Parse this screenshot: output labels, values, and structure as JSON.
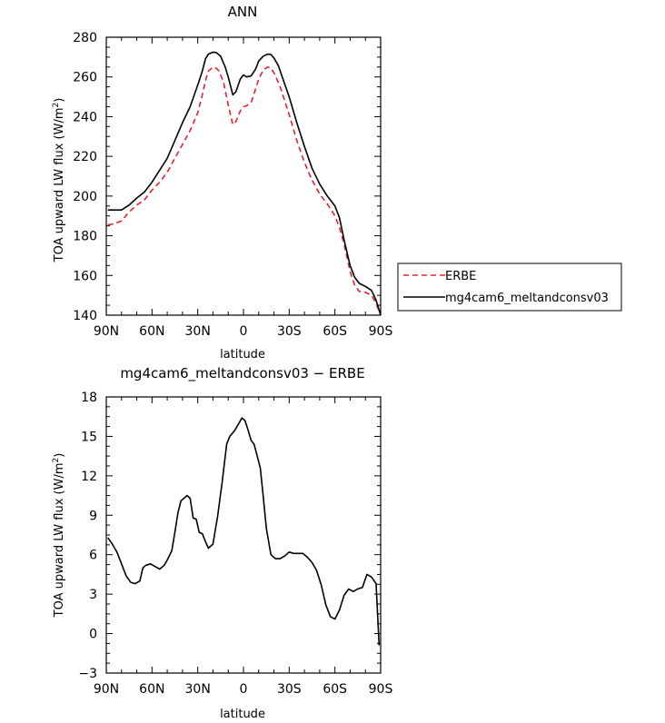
{
  "chart_data": [
    {
      "type": "line",
      "title": "ANN",
      "xlabel": "latitude",
      "ylabel_main": "TOA upward LW flux (W/m",
      "ylabel_sup": "2",
      "ylabel_tail": ")",
      "xlim": [
        -90,
        90
      ],
      "ylim": [
        140,
        280
      ],
      "x_ticks": [
        -90,
        -60,
        -30,
        0,
        30,
        60,
        90
      ],
      "x_tick_labels": [
        "90N",
        "60N",
        "30N",
        "0",
        "30S",
        "60S",
        "90S"
      ],
      "y_ticks": [
        140,
        160,
        180,
        200,
        220,
        240,
        260,
        280
      ],
      "y_tick_labels": [
        "140",
        "160",
        "180",
        "200",
        "220",
        "240",
        "260",
        "280"
      ],
      "legend_position": "right",
      "series": [
        {
          "name": "ERBE",
          "color": "#e8202a",
          "dash": "dashed",
          "x": [
            -89,
            -85,
            -80,
            -75,
            -70,
            -65,
            -60,
            -55,
            -50,
            -45,
            -40,
            -35,
            -30,
            -27,
            -25,
            -23,
            -20,
            -18,
            -16,
            -13,
            -10,
            -7,
            -5,
            -2,
            0,
            2,
            5,
            8,
            10,
            13,
            16,
            18,
            20,
            23,
            25,
            30,
            35,
            40,
            45,
            50,
            55,
            60,
            63,
            66,
            70,
            73,
            76,
            80,
            84,
            87,
            90
          ],
          "y": [
            185.5,
            186,
            187.5,
            192,
            195.5,
            198,
            203,
            207,
            212,
            219,
            226,
            233,
            242,
            251,
            258,
            263,
            265,
            264.5,
            263,
            257,
            246,
            236,
            237.5,
            243,
            245,
            245.5,
            247,
            254,
            259,
            263.5,
            265,
            264.5,
            262,
            257,
            253,
            241,
            228,
            217,
            208,
            201,
            196,
            190,
            184,
            176,
            162,
            155,
            152,
            151.5,
            150,
            146,
            140
          ]
        },
        {
          "name": "mg4cam6_meltandconsv03",
          "color": "#000000",
          "dash": "solid",
          "x": [
            -89,
            -85,
            -80,
            -75,
            -70,
            -65,
            -60,
            -55,
            -50,
            -45,
            -40,
            -35,
            -30,
            -27,
            -25,
            -23,
            -20,
            -18,
            -15,
            -12,
            -10,
            -7,
            -5,
            -2,
            0,
            2,
            5,
            8,
            10,
            13,
            16,
            18,
            20,
            23,
            25,
            30,
            35,
            40,
            45,
            50,
            55,
            60,
            63,
            66,
            70,
            73,
            76,
            80,
            84,
            87,
            90
          ],
          "y": [
            193,
            193,
            193,
            195.5,
            199,
            202,
            207,
            213,
            219,
            228,
            237,
            245,
            256,
            263,
            269,
            271.5,
            272.5,
            272.3,
            270.5,
            265,
            260,
            251,
            252.5,
            259,
            261,
            260,
            260.5,
            264,
            268,
            270.5,
            271.5,
            271.3,
            269.5,
            265.5,
            261,
            250,
            237,
            225,
            214,
            206,
            200,
            195,
            189,
            178,
            165,
            159,
            156,
            154.5,
            152.5,
            147.5,
            140
          ]
        }
      ]
    },
    {
      "type": "line",
      "title": "mg4cam6_meltandconsv03 − ERBE",
      "xlabel": "latitude",
      "ylabel_main": "TOA upward LW flux (W/m",
      "ylabel_sup": "2",
      "ylabel_tail": ")",
      "xlim": [
        -90,
        90
      ],
      "ylim": [
        -3,
        18
      ],
      "x_ticks": [
        -90,
        -60,
        -30,
        0,
        30,
        60,
        90
      ],
      "x_tick_labels": [
        "90N",
        "60N",
        "30N",
        "0",
        "30S",
        "60S",
        "90S"
      ],
      "y_ticks": [
        -3,
        0,
        3,
        6,
        9,
        12,
        15,
        18
      ],
      "y_tick_labels": [
        "−3",
        "0",
        "3",
        "6",
        "9",
        "12",
        "15",
        "18"
      ],
      "series": [
        {
          "name": "",
          "color": "#000000",
          "dash": "solid",
          "x": [
            -89,
            -86,
            -83,
            -80,
            -77,
            -74,
            -71,
            -68,
            -66,
            -64,
            -61,
            -58,
            -55,
            -52,
            -50,
            -47,
            -45,
            -43,
            -41,
            -39,
            -37,
            -35,
            -33,
            -31,
            -29,
            -27,
            -25,
            -23,
            -20,
            -17,
            -14,
            -11,
            -9,
            -6,
            -3,
            -1,
            1,
            3,
            5,
            7,
            9,
            11,
            13,
            15,
            18,
            21,
            24,
            27,
            30,
            33,
            36,
            39,
            42,
            45,
            48,
            51,
            54,
            57,
            60,
            63,
            66,
            69,
            72,
            75,
            78,
            81,
            84,
            87,
            89
          ],
          "y": [
            7.3,
            6.8,
            6.2,
            5.3,
            4.4,
            3.9,
            3.8,
            4.0,
            5.0,
            5.2,
            5.3,
            5.1,
            4.9,
            5.2,
            5.6,
            6.3,
            7.7,
            9.2,
            10.1,
            10.3,
            10.5,
            10.3,
            8.8,
            8.7,
            7.7,
            7.6,
            7.0,
            6.5,
            6.8,
            8.9,
            11.5,
            14.4,
            15.0,
            15.4,
            16.0,
            16.4,
            16.2,
            15.5,
            14.7,
            14.4,
            13.5,
            12.6,
            10.4,
            8.0,
            6.0,
            5.7,
            5.7,
            5.9,
            6.2,
            6.1,
            6.1,
            6.1,
            5.8,
            5.4,
            4.8,
            3.7,
            2.2,
            1.3,
            1.1,
            1.8,
            2.9,
            3.4,
            3.2,
            3.4,
            3.5,
            4.5,
            4.3,
            3.8,
            -0.9
          ]
        }
      ]
    }
  ]
}
